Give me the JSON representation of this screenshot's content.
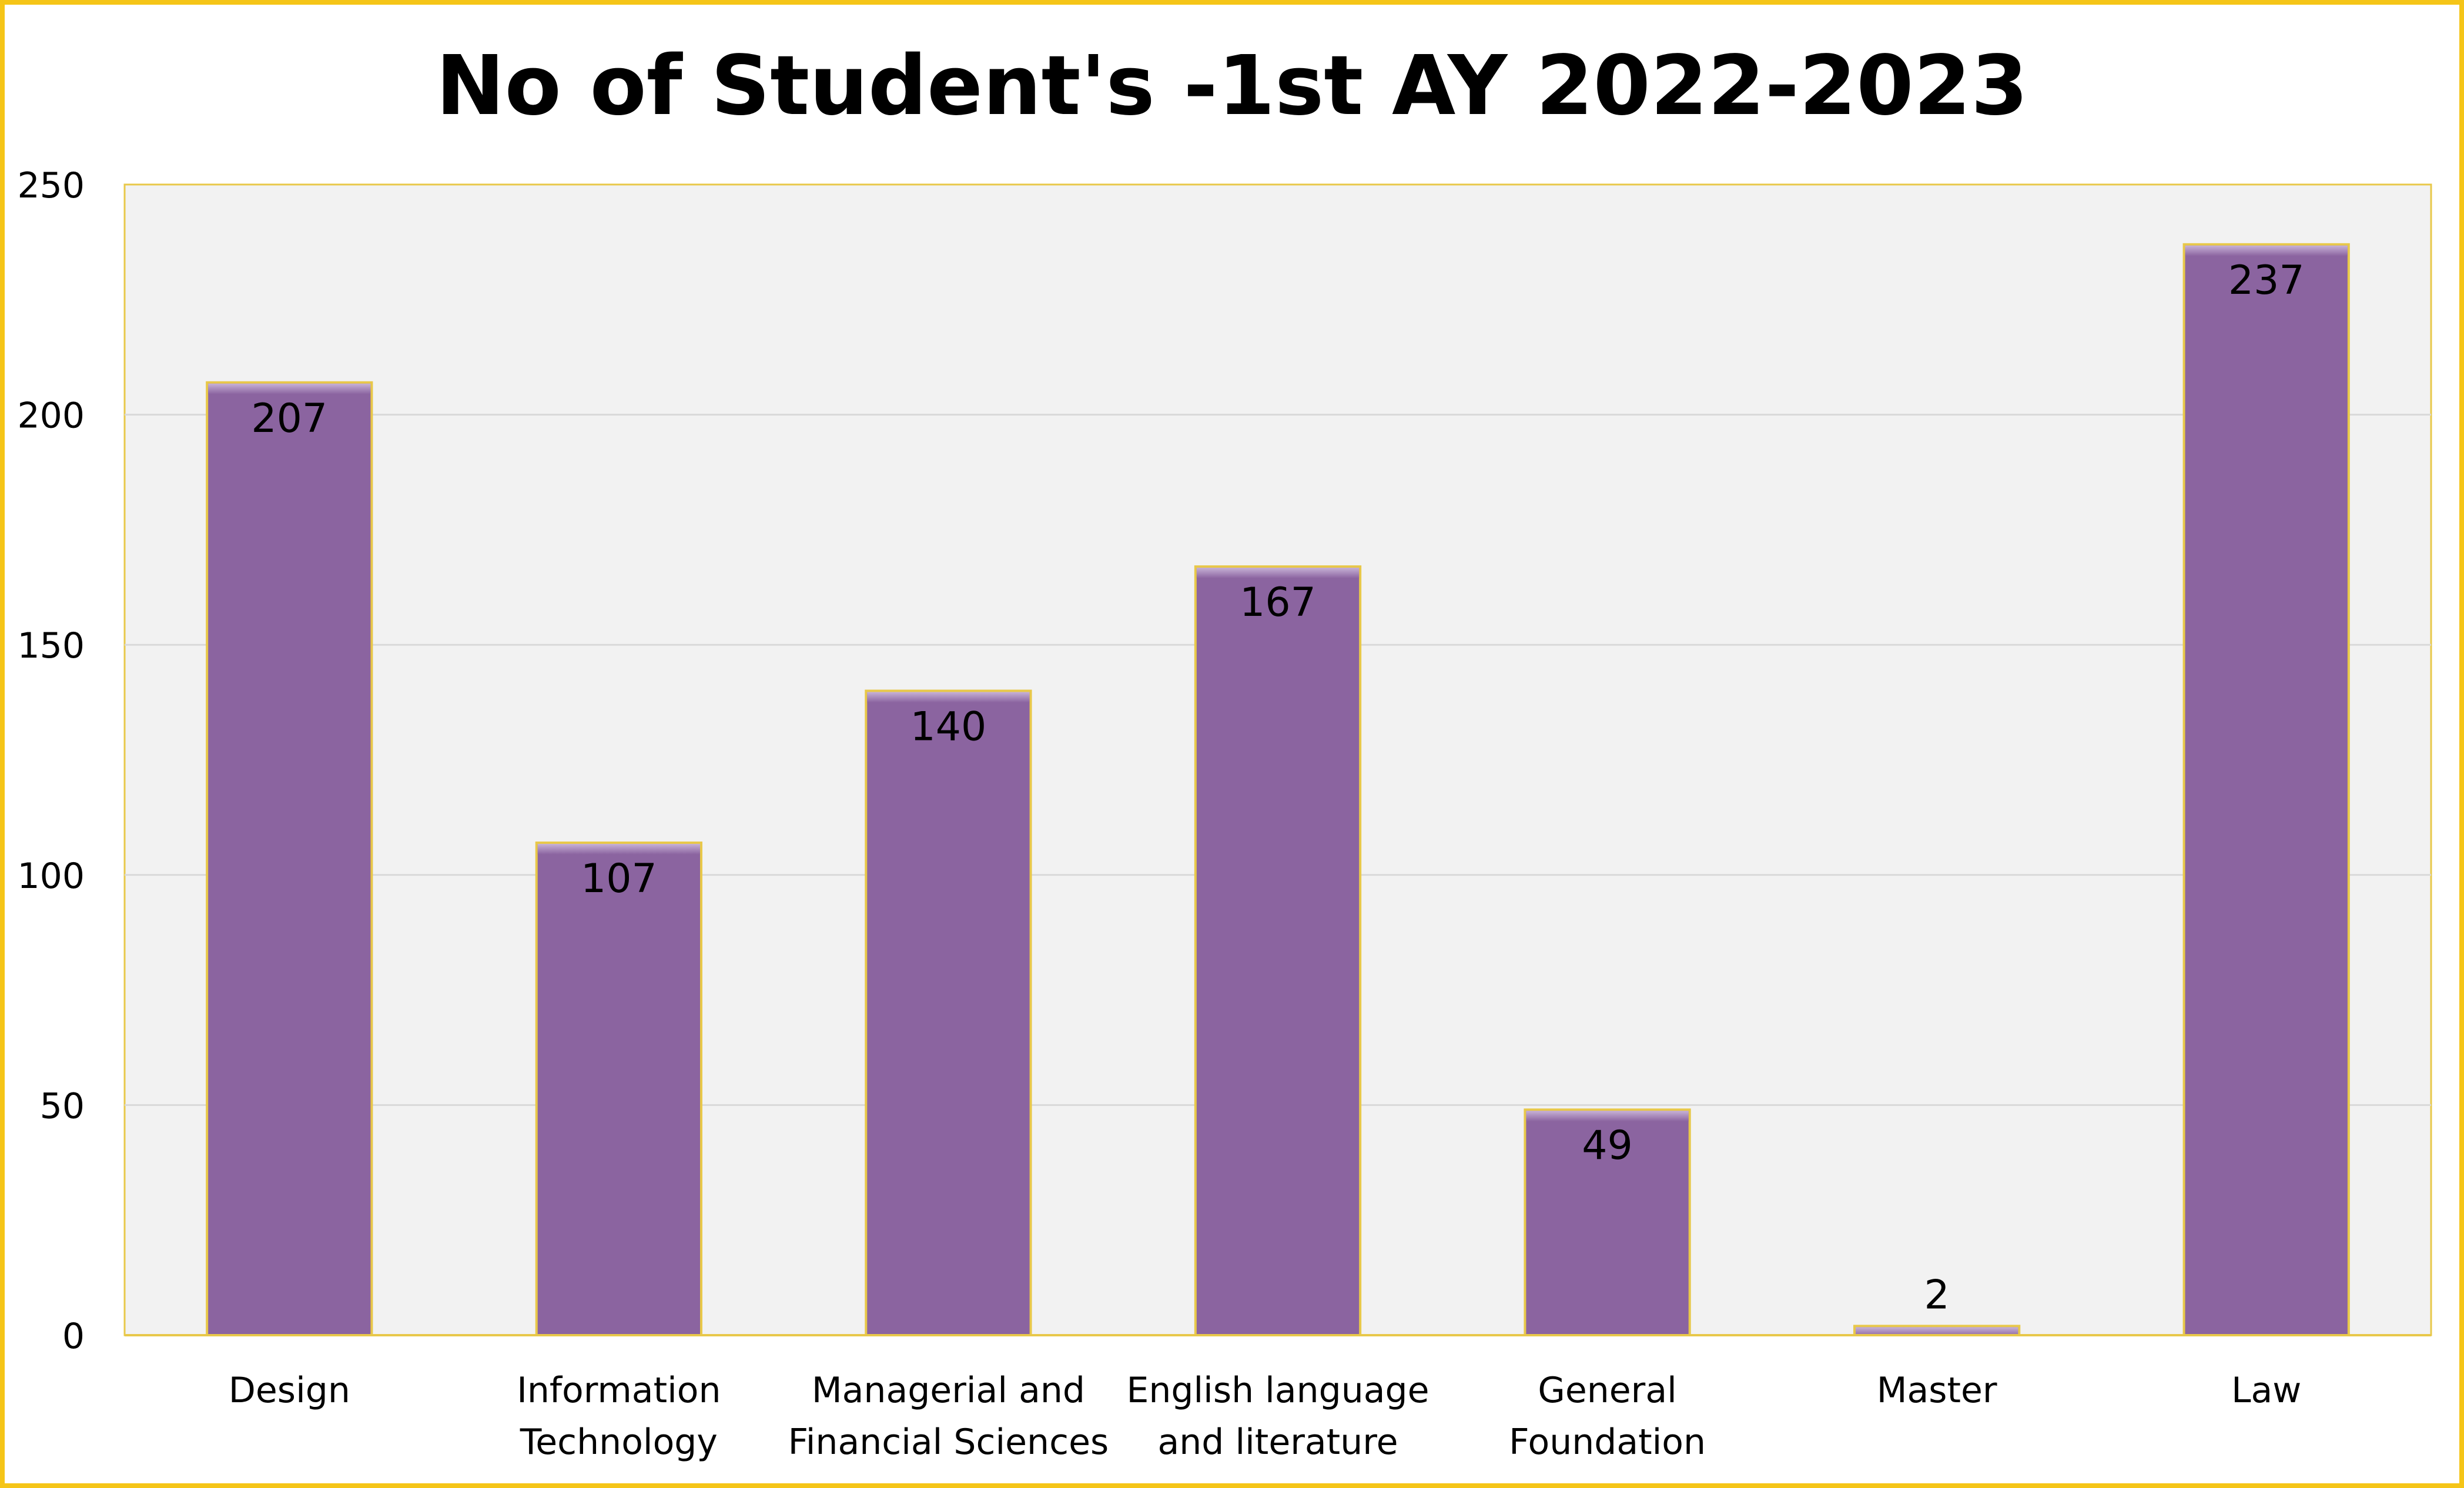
{
  "chart_data": {
    "type": "bar",
    "title": "No of Student's -1st AY 2022-2023",
    "xlabel": "",
    "ylabel": "",
    "categories": [
      [
        "Design"
      ],
      [
        "Information",
        "Technology"
      ],
      [
        "Managerial and",
        "Financial Sciences"
      ],
      [
        "English language",
        "and literature"
      ],
      [
        "General",
        "Foundation"
      ],
      [
        "Master"
      ],
      [
        "Law"
      ]
    ],
    "values": [
      207,
      107,
      140,
      167,
      49,
      2,
      237
    ],
    "data_labels": [
      "207",
      "107",
      "140",
      "167",
      "49",
      "2",
      "237"
    ],
    "ylim": [
      0,
      250
    ],
    "yticks": [
      0,
      50,
      100,
      150,
      200,
      250
    ],
    "grid": true,
    "legend": "none",
    "colors": {
      "bar": "#8B64A0",
      "bar_edge": "#E8C84A",
      "plot_background": "#F2F2F2",
      "frame_border": "#F5C518",
      "plot_border": "#E8C84A",
      "grid": "#D9D9D9"
    }
  }
}
